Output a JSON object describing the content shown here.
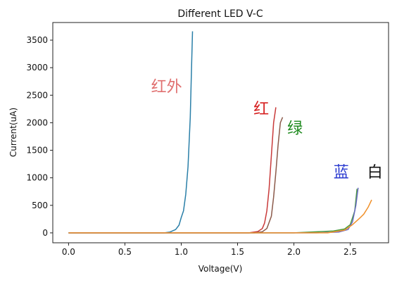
{
  "chart_data": {
    "type": "line",
    "title": "Different LED V-C",
    "xlabel": "Voltage(V)",
    "ylabel": "Current(uA)",
    "xlim": [
      -0.14,
      2.84
    ],
    "ylim": [
      -180,
      3820
    ],
    "xticks": [
      0.0,
      0.5,
      1.0,
      1.5,
      2.0,
      2.5
    ],
    "xtick_labels": [
      "0.0",
      "0.5",
      "1.0",
      "1.5",
      "2.0",
      "2.5"
    ],
    "yticks": [
      0,
      500,
      1000,
      1500,
      2000,
      2500,
      3000,
      3500
    ],
    "ytick_labels": [
      "0",
      "500",
      "1000",
      "1500",
      "2000",
      "2500",
      "3000",
      "3500"
    ],
    "grid": false,
    "colors": {
      "infrared": "#2a7fa8",
      "red": "#c93a3a",
      "green": "#4a9a3c",
      "brown": "#8b5a4a",
      "blue": "#6a6bc4",
      "white": "#f0902a",
      "annot_infrared": "#e07070",
      "annot_red": "#d62020",
      "annot_green": "#1e8a1e",
      "annot_blue": "#2a3ad0",
      "annot_white": "#111111"
    },
    "series": [
      {
        "color_key": "infrared",
        "points": [
          [
            0.0,
            0
          ],
          [
            0.85,
            0
          ],
          [
            0.9,
            15
          ],
          [
            0.95,
            60
          ],
          [
            0.98,
            140
          ],
          [
            1.0,
            280
          ],
          [
            1.02,
            400
          ],
          [
            1.04,
            700
          ],
          [
            1.06,
            1200
          ],
          [
            1.08,
            2100
          ],
          [
            1.09,
            2900
          ],
          [
            1.1,
            3660
          ]
        ]
      },
      {
        "color_key": "red",
        "points": [
          [
            0.0,
            0
          ],
          [
            1.6,
            0
          ],
          [
            1.68,
            25
          ],
          [
            1.72,
            80
          ],
          [
            1.74,
            180
          ],
          [
            1.76,
            400
          ],
          [
            1.78,
            800
          ],
          [
            1.8,
            1400
          ],
          [
            1.82,
            2000
          ],
          [
            1.84,
            2280
          ]
        ]
      },
      {
        "color_key": "brown",
        "points": [
          [
            0.0,
            0
          ],
          [
            1.65,
            0
          ],
          [
            1.72,
            20
          ],
          [
            1.76,
            80
          ],
          [
            1.8,
            300
          ],
          [
            1.82,
            650
          ],
          [
            1.84,
            1100
          ],
          [
            1.86,
            1600
          ],
          [
            1.88,
            2000
          ],
          [
            1.9,
            2100
          ]
        ]
      },
      {
        "color_key": "green",
        "points": [
          [
            0.0,
            0
          ],
          [
            2.0,
            0
          ],
          [
            2.2,
            20
          ],
          [
            2.35,
            35
          ],
          [
            2.45,
            70
          ],
          [
            2.5,
            150
          ],
          [
            2.54,
            400
          ],
          [
            2.56,
            800
          ]
        ]
      },
      {
        "color_key": "blue",
        "points": [
          [
            0.0,
            0
          ],
          [
            2.2,
            0
          ],
          [
            2.4,
            15
          ],
          [
            2.48,
            60
          ],
          [
            2.52,
            200
          ],
          [
            2.55,
            500
          ],
          [
            2.57,
            820
          ]
        ]
      },
      {
        "color_key": "white",
        "points": [
          [
            0.0,
            0
          ],
          [
            2.3,
            0
          ],
          [
            2.45,
            50
          ],
          [
            2.52,
            150
          ],
          [
            2.58,
            260
          ],
          [
            2.62,
            340
          ],
          [
            2.66,
            470
          ],
          [
            2.69,
            600
          ]
        ]
      }
    ],
    "annotations": [
      {
        "text": "红外",
        "x": 0.87,
        "y": 2560,
        "color_key": "annot_infrared"
      },
      {
        "text": "红",
        "x": 1.71,
        "y": 2160,
        "color_key": "annot_red"
      },
      {
        "text": "绿",
        "x": 2.01,
        "y": 1810,
        "color_key": "annot_green"
      },
      {
        "text": "蓝",
        "x": 2.42,
        "y": 1010,
        "color_key": "annot_blue"
      },
      {
        "text": "白",
        "x": 2.72,
        "y": 1010,
        "color_key": "annot_white"
      }
    ]
  }
}
